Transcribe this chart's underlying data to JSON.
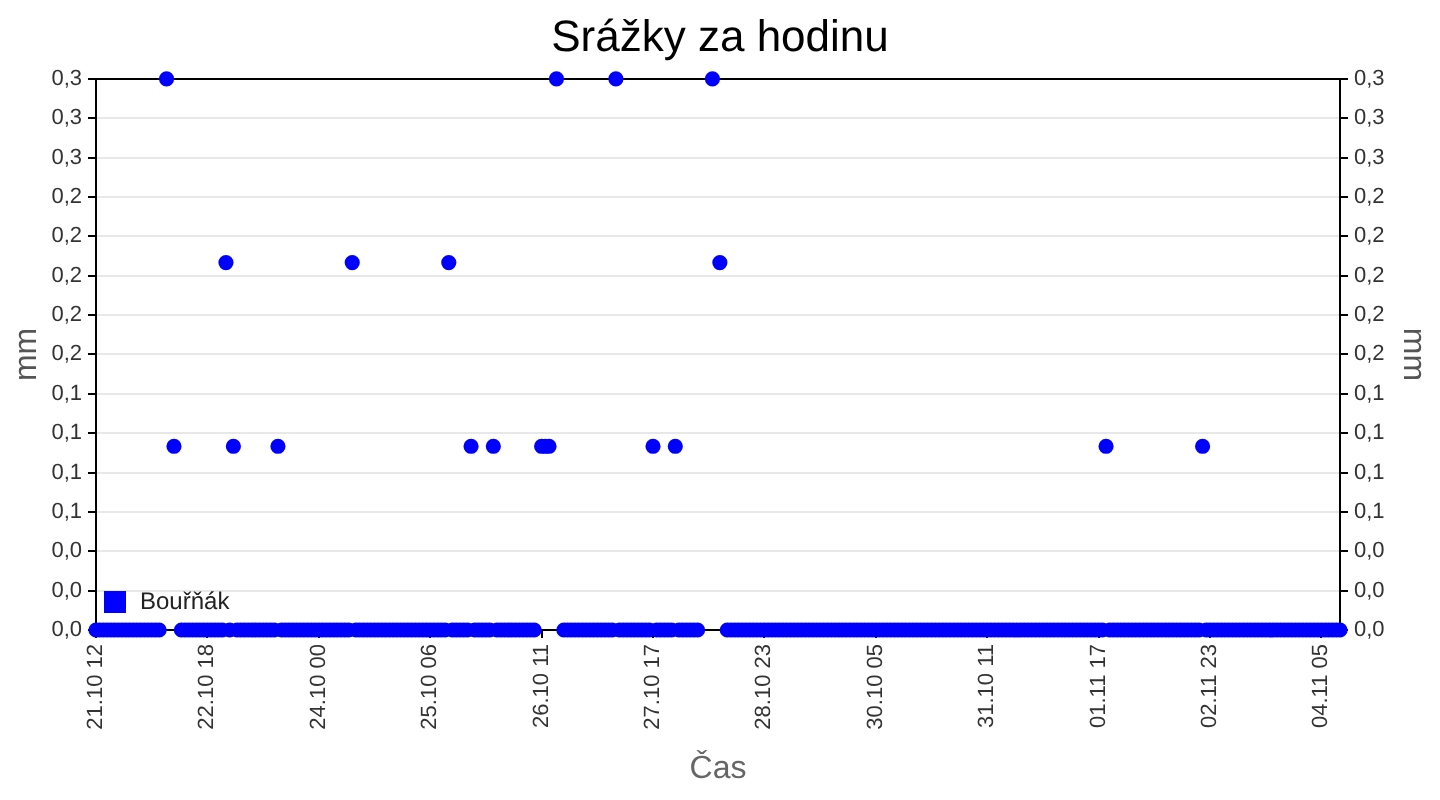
{
  "chart_data": {
    "type": "scatter",
    "title": "Srážky za hodinu",
    "xlabel": "Čas",
    "ylabel": "mm",
    "y2label": "mm",
    "categories": [
      "21.10 12",
      null,
      null,
      null,
      null,
      null,
      null,
      null,
      null,
      null,
      null,
      null,
      null,
      null,
      null,
      null,
      null,
      null,
      null,
      null,
      null,
      null,
      null,
      null,
      null,
      null,
      null,
      null,
      null,
      null,
      "22.10 18",
      null,
      null,
      null,
      null,
      null,
      null,
      null,
      null,
      null,
      null,
      null,
      null,
      null,
      null,
      null,
      null,
      null,
      null,
      null,
      null,
      null,
      null,
      null,
      null,
      null,
      null,
      null,
      null,
      null,
      "24.10 00",
      null,
      null,
      null,
      null,
      null,
      null,
      null,
      null,
      null,
      null,
      null,
      null,
      null,
      null,
      null,
      null,
      null,
      null,
      null,
      null,
      null,
      null,
      null,
      null,
      null,
      null,
      null,
      null,
      null,
      "25.10 06",
      null,
      null,
      null,
      null,
      null,
      null,
      null,
      null,
      null,
      null,
      null,
      null,
      null,
      null,
      null,
      null,
      null,
      null,
      null,
      null,
      null,
      null,
      null,
      null,
      null,
      null,
      null,
      null,
      null,
      "26.10 11",
      null,
      null,
      null,
      null,
      null,
      null,
      null,
      null,
      null,
      null,
      null,
      null,
      null,
      null,
      null,
      null,
      null,
      null,
      null,
      null,
      null,
      null,
      null,
      null,
      null,
      null,
      null,
      null,
      null,
      "27.10 17",
      null,
      null,
      null,
      null,
      null,
      null,
      null,
      null,
      null,
      null,
      null,
      null,
      null,
      null,
      null,
      null,
      null,
      null,
      null,
      null,
      null,
      null,
      null,
      null,
      null,
      null,
      null,
      null,
      null,
      "28.10 23",
      null,
      null,
      null,
      null,
      null,
      null,
      null,
      null,
      null,
      null,
      null,
      null,
      null,
      null,
      null,
      null,
      null,
      null,
      null,
      null,
      null,
      null,
      null,
      null,
      null,
      null,
      null,
      null,
      null,
      "30.10 05",
      null,
      null,
      null,
      null,
      null,
      null,
      null,
      null,
      null,
      null,
      null,
      null,
      null,
      null,
      null,
      null,
      null,
      null,
      null,
      null,
      null,
      null,
      null,
      null,
      null,
      null,
      null,
      null,
      null,
      "31.10 11",
      null,
      null,
      null,
      null,
      null,
      null,
      null,
      null,
      null,
      null,
      null,
      null,
      null,
      null,
      null,
      null,
      null,
      null,
      null,
      null,
      null,
      null,
      null,
      null,
      null,
      null,
      null,
      null,
      null,
      "01.11 17",
      null,
      null,
      null,
      null,
      null,
      null,
      null,
      null,
      null,
      null,
      null,
      null,
      null,
      null,
      null,
      null,
      null,
      null,
      null,
      null,
      null,
      null,
      null,
      null,
      null,
      null,
      null,
      null,
      null,
      "02.11 23",
      null,
      null,
      null,
      null,
      null,
      null,
      null,
      null,
      null,
      null,
      null,
      null,
      null,
      null,
      null,
      null,
      null,
      null,
      null,
      null,
      null,
      null,
      null,
      null,
      null,
      null,
      null,
      null,
      null,
      "04.11 05",
      null,
      null,
      null,
      null,
      null
    ],
    "series": [
      {
        "name": "Bouřňák",
        "color": "#0000ff",
        "values": [
          0,
          0,
          0,
          0,
          0,
          0,
          0,
          0,
          0,
          0,
          0,
          0,
          0,
          0,
          0,
          0,
          0,
          0,
          null,
          0.3,
          null,
          0.1,
          null,
          0,
          0,
          0,
          0,
          0,
          0,
          0,
          0,
          0,
          0,
          0,
          0,
          0.2,
          0,
          0.1,
          0,
          0,
          0,
          0,
          0,
          0,
          0,
          0,
          0,
          0,
          0,
          0.1,
          0,
          0,
          0,
          0,
          0,
          0,
          0,
          0,
          0,
          0,
          0,
          0,
          0,
          0,
          0,
          0,
          0,
          0,
          0,
          0.2,
          0,
          0,
          0,
          0,
          0,
          0,
          0,
          0,
          0,
          0,
          0,
          0,
          0,
          0,
          0,
          0,
          0,
          0,
          0,
          0,
          0,
          0,
          0,
          0,
          0,
          0.2,
          0,
          0,
          0,
          0,
          0,
          0.1,
          0,
          0,
          0,
          0,
          0,
          0.1,
          0,
          0,
          0,
          0,
          0,
          0,
          0,
          0,
          0,
          0,
          0,
          null,
          0.1,
          0.1,
          0.1,
          null,
          0.3,
          null,
          0,
          0,
          0,
          0,
          0,
          0,
          0,
          0,
          0,
          0,
          0,
          0,
          0,
          0,
          0.3,
          0,
          0,
          0,
          0,
          0,
          0,
          0,
          0,
          0,
          0.1,
          0,
          0,
          0,
          0,
          0,
          0.1,
          0,
          0,
          0,
          0,
          0,
          0,
          null,
          null,
          null,
          0.3,
          null,
          0.2,
          null,
          0,
          0,
          0,
          0,
          0,
          0,
          0,
          0,
          0,
          0,
          0,
          0,
          0,
          0,
          0,
          0,
          0,
          0,
          0,
          0,
          0,
          0,
          0,
          0,
          0,
          0,
          0,
          0,
          0,
          0,
          0,
          0,
          0,
          0,
          0,
          0,
          0,
          0,
          0,
          0,
          0,
          0,
          0,
          0,
          0,
          0,
          0,
          0,
          0,
          0,
          0,
          0,
          0,
          0,
          0,
          0,
          0,
          0,
          0,
          0,
          0,
          0,
          0,
          0,
          0,
          0,
          0,
          0,
          0,
          0,
          0,
          0,
          0,
          0,
          0,
          0,
          0,
          0,
          0,
          0,
          0,
          0,
          0,
          0,
          0,
          0,
          0,
          0,
          0,
          0,
          0,
          0,
          0,
          0,
          0,
          0,
          0,
          0,
          0,
          0,
          0,
          0,
          0.1,
          0,
          0,
          0,
          0,
          0,
          0,
          0,
          0,
          0,
          0,
          0,
          0,
          0,
          0,
          0,
          0,
          0,
          0,
          0,
          0,
          0,
          0,
          0,
          0,
          0,
          0.1,
          0,
          0,
          0,
          0,
          0,
          0,
          0,
          0,
          0,
          0,
          0,
          0,
          0,
          0,
          0,
          0,
          0,
          0,
          0,
          0,
          0,
          0,
          0,
          0,
          0,
          0,
          0,
          0,
          0,
          0,
          0,
          0,
          0,
          0,
          0,
          0,
          0
        ]
      }
    ],
    "ylim": [
      0,
      0.3
    ],
    "yticks": [
      {
        "value": 0,
        "label": "0,0"
      },
      {
        "value": 0.0214,
        "label": "0,0"
      },
      {
        "value": 0.0429,
        "label": "0,0"
      },
      {
        "value": 0.0643,
        "label": "0,1"
      },
      {
        "value": 0.0857,
        "label": "0,1"
      },
      {
        "value": 0.1071,
        "label": "0,1"
      },
      {
        "value": 0.1286,
        "label": "0,1"
      },
      {
        "value": 0.15,
        "label": "0,2"
      },
      {
        "value": 0.1714,
        "label": "0,2"
      },
      {
        "value": 0.1929,
        "label": "0,2"
      },
      {
        "value": 0.2143,
        "label": "0,2"
      },
      {
        "value": 0.2357,
        "label": "0,2"
      },
      {
        "value": 0.2571,
        "label": "0,3"
      },
      {
        "value": 0.2786,
        "label": "0,3"
      },
      {
        "value": 0.3,
        "label": "0,3"
      }
    ],
    "y2lim": [
      0,
      0.3
    ],
    "y2ticks": [
      {
        "value": 0,
        "label": "0,0"
      },
      {
        "value": 0.0214,
        "label": "0,0"
      },
      {
        "value": 0.0429,
        "label": "0,0"
      },
      {
        "value": 0.0643,
        "label": "0,1"
      },
      {
        "value": 0.0857,
        "label": "0,1"
      },
      {
        "value": 0.1071,
        "label": "0,1"
      },
      {
        "value": 0.1286,
        "label": "0,1"
      },
      {
        "value": 0.15,
        "label": "0,2"
      },
      {
        "value": 0.1714,
        "label": "0,2"
      },
      {
        "value": 0.1929,
        "label": "0,2"
      },
      {
        "value": 0.2143,
        "label": "0,2"
      },
      {
        "value": 0.2357,
        "label": "0,2"
      },
      {
        "value": 0.2571,
        "label": "0,3"
      },
      {
        "value": 0.2786,
        "label": "0,3"
      },
      {
        "value": 0.3,
        "label": "0,3"
      }
    ],
    "grid": "y",
    "legend": "bottom left",
    "marker": "circle"
  }
}
